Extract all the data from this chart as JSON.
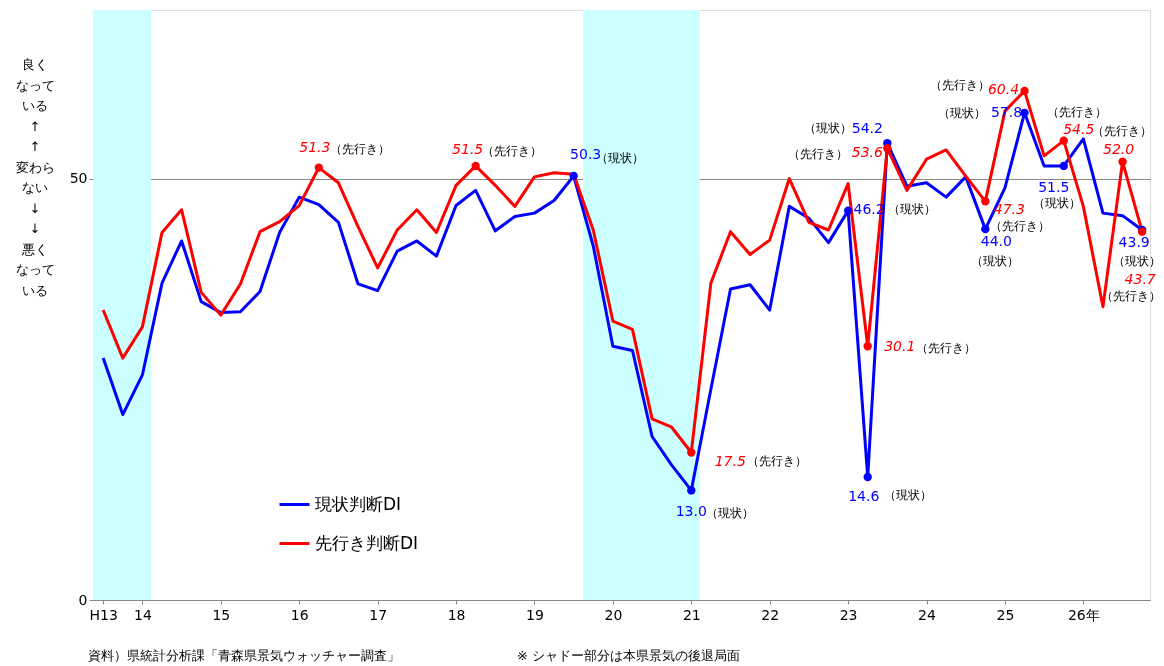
{
  "chart_data": {
    "type": "line",
    "x": [
      13.5,
      13.75,
      14.0,
      14.25,
      14.5,
      14.75,
      15.0,
      15.25,
      15.5,
      15.75,
      16.0,
      16.25,
      16.5,
      16.75,
      17.0,
      17.25,
      17.5,
      17.75,
      18.0,
      18.25,
      18.5,
      18.75,
      19.0,
      19.25,
      19.5,
      19.75,
      20.0,
      20.25,
      20.5,
      20.75,
      21.0,
      21.25,
      21.5,
      21.75,
      22.0,
      22.25,
      22.5,
      22.75,
      23.0,
      23.25,
      23.5,
      23.75,
      24.0,
      24.25,
      24.5,
      24.75,
      25.0,
      25.25,
      25.5,
      25.75,
      26.0,
      26.25,
      26.5,
      26.75
    ],
    "series": [
      {
        "name": "現状判断DI",
        "color": "#0000ff",
        "values": [
          28.7,
          22.0,
          26.7,
          37.6,
          42.6,
          35.4,
          34.1,
          34.2,
          36.6,
          43.6,
          47.8,
          46.9,
          44.8,
          37.5,
          36.7,
          41.4,
          42.6,
          40.8,
          46.8,
          48.6,
          43.8,
          45.5,
          45.9,
          47.4,
          50.3,
          42.0,
          30.1,
          29.6,
          19.4,
          16.0,
          13.0,
          25.0,
          36.9,
          37.4,
          34.4,
          46.7,
          45.3,
          42.4,
          46.2,
          14.6,
          54.2,
          49.1,
          49.5,
          47.8,
          50.2,
          44.0,
          48.9,
          57.8,
          51.5,
          51.5,
          54.7,
          45.9,
          45.6,
          43.9
        ],
        "value_labels": [
          null,
          null,
          null,
          null,
          null,
          null,
          null,
          null,
          null,
          null,
          null,
          null,
          null,
          null,
          null,
          null,
          null,
          null,
          null,
          null,
          null,
          null,
          null,
          null,
          "50.3",
          null,
          null,
          null,
          null,
          null,
          "13.0",
          null,
          null,
          null,
          null,
          null,
          null,
          null,
          "46.2",
          "14.6",
          "54.2",
          null,
          null,
          null,
          null,
          "44.0",
          null,
          "57.8",
          null,
          "51.5",
          null,
          null,
          null,
          "43.9"
        ]
      },
      {
        "name": "先行き判断DI",
        "color": "#ff0000",
        "values": [
          34.4,
          28.7,
          32.4,
          43.6,
          46.3,
          36.5,
          33.8,
          37.5,
          43.7,
          44.9,
          46.8,
          51.3,
          49.5,
          44.3,
          39.4,
          43.9,
          46.3,
          43.6,
          49.2,
          51.5,
          49.2,
          46.7,
          50.2,
          50.7,
          50.5,
          43.9,
          33.1,
          32.1,
          21.5,
          20.5,
          17.5,
          37.6,
          43.7,
          41.0,
          42.7,
          50.0,
          44.8,
          43.9,
          49.4,
          30.1,
          53.6,
          48.6,
          52.3,
          53.4,
          50.3,
          47.3,
          58.0,
          60.4,
          52.7,
          54.5,
          46.7,
          34.8,
          52.0,
          43.7
        ],
        "value_labels": [
          null,
          null,
          null,
          null,
          null,
          null,
          null,
          null,
          null,
          null,
          null,
          "51.3",
          null,
          null,
          null,
          null,
          null,
          null,
          null,
          "51.5",
          null,
          null,
          null,
          null,
          null,
          null,
          null,
          null,
          null,
          null,
          "17.5",
          null,
          null,
          null,
          null,
          null,
          null,
          null,
          null,
          "30.1",
          "53.6",
          null,
          null,
          null,
          null,
          "47.3",
          null,
          "60.4",
          null,
          "54.5",
          null,
          null,
          "52.0",
          "43.7"
        ]
      }
    ],
    "xlim": [
      13.37,
      26.85
    ],
    "xticks": [
      {
        "value": 13.5,
        "label": "H13"
      },
      14,
      15,
      16,
      17,
      18,
      19,
      20,
      21,
      22,
      23,
      24,
      25,
      {
        "value": 26,
        "label": "26年"
      }
    ],
    "ylim": [
      0,
      70
    ],
    "yticks": [
      0,
      50
    ],
    "grid": "y",
    "legend": "bottom left",
    "bands": [
      {
        "axis": "x",
        "from": 13.37,
        "to": 14.11,
        "color": "#ccffff"
      },
      {
        "axis": "x",
        "from": 19.62,
        "to": 21.11,
        "color": "#ccffff"
      }
    ],
    "annotations": [
      "良く",
      "なって",
      "いる",
      "↑",
      "↑",
      "変わら",
      "ない",
      "↓",
      "↓",
      "悪く",
      "なって",
      "いる",
      "資料）県統計分析課「青森県景気ウォッチャー調査」",
      "※  シャドー部分は本県景気の後退局面",
      "（先行き）",
      "（先行き）",
      "（先行き）",
      "（先行き）",
      "（先行き）",
      "（先行き）",
      "（先行き）",
      "（先行き）",
      "（先行き）",
      "（先行き）",
      "（現状）",
      "（現状）",
      "（現状）",
      "（現状）",
      "（現状）",
      "（現状）",
      "（現状）",
      "（現状）",
      "（現状）"
    ]
  }
}
